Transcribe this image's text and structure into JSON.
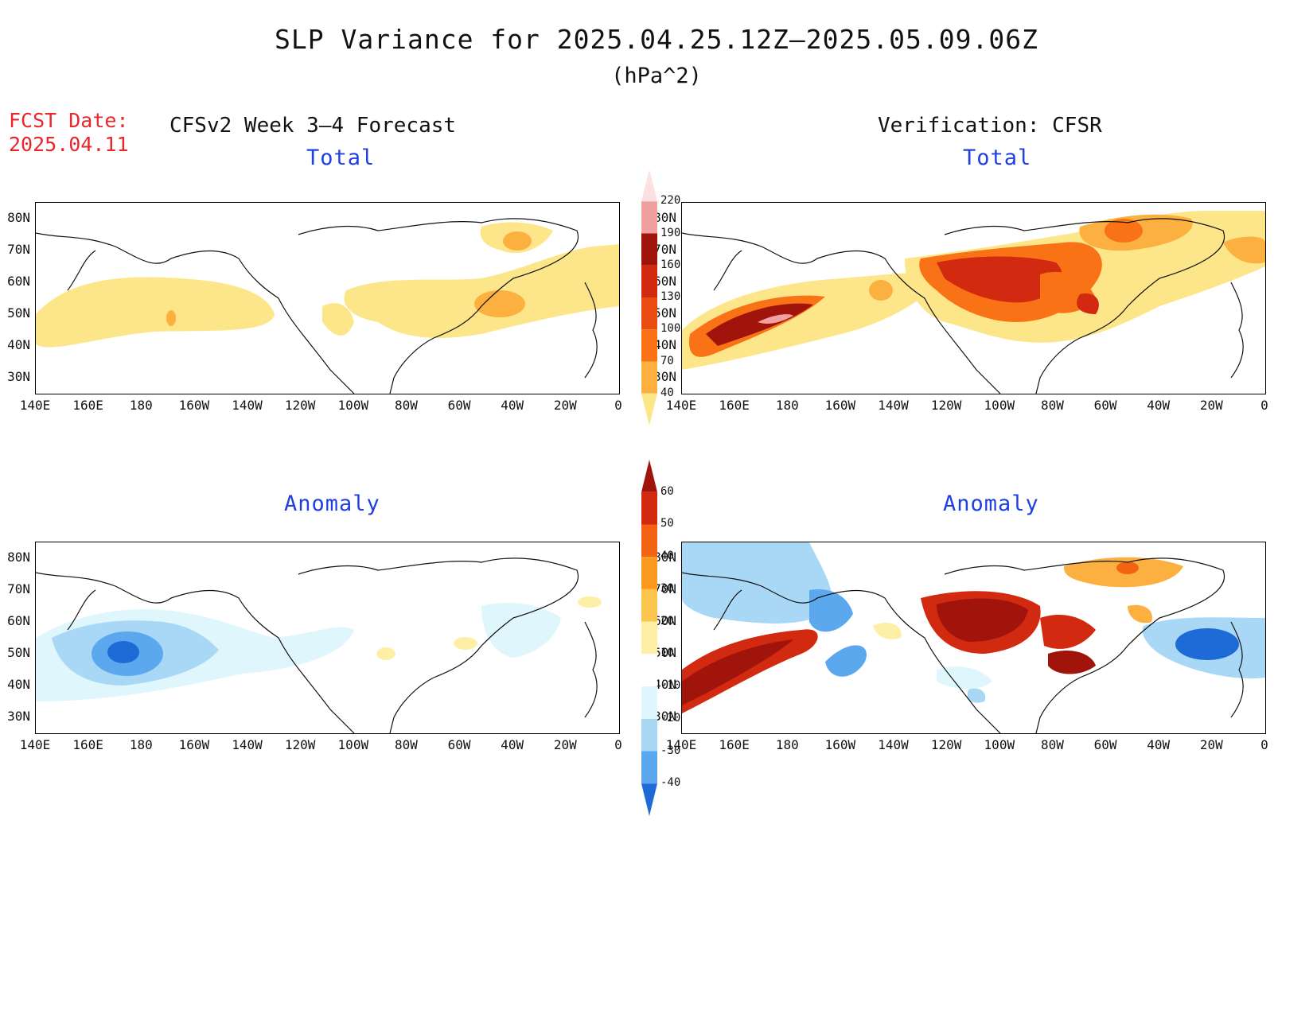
{
  "title": "SLP Variance for 2025.04.25.12Z–2025.05.09.06Z",
  "units": "(hPa^2)",
  "forecast": {
    "label": "FCST Date:",
    "date": "2025.04.11"
  },
  "left_header": "CFSv2 Week 3–4 Forecast",
  "right_header": "Verification: CFSR",
  "panels": {
    "forecast_total": {
      "subtitle": "Total"
    },
    "verification_total": {
      "subtitle": "Total"
    },
    "forecast_anomaly": {
      "subtitle": "Anomaly"
    },
    "verification_anomaly": {
      "subtitle": "Anomaly"
    }
  },
  "lat_labels": [
    "80N",
    "70N",
    "60N",
    "50N",
    "40N",
    "30N"
  ],
  "lon_labels": [
    "140E",
    "160E",
    "180",
    "160W",
    "140W",
    "120W",
    "100W",
    "80W",
    "60W",
    "40W",
    "20W",
    "0"
  ],
  "colorbar_total": {
    "levels": [
      "40",
      "70",
      "100",
      "130",
      "160",
      "190",
      "220"
    ],
    "colors": [
      "#fde68a",
      "#fbb040",
      "#f97316",
      "#ea4b12",
      "#d12a10",
      "#a0140c",
      "#f1a0a0",
      "#fde0e4"
    ]
  },
  "colorbar_anomaly": {
    "levels": [
      "60",
      "50",
      "40",
      "30",
      "20",
      "10",
      "-10",
      "-20",
      "-30",
      "-40"
    ],
    "colors": [
      "#a0140c",
      "#d12a10",
      "#f26411",
      "#fb9a1e",
      "#fbc54e",
      "#fdf0a6",
      "#ffffff",
      "#dff6fd",
      "#a9d8f7",
      "#5ca8ee",
      "#1e6bd8"
    ]
  }
}
